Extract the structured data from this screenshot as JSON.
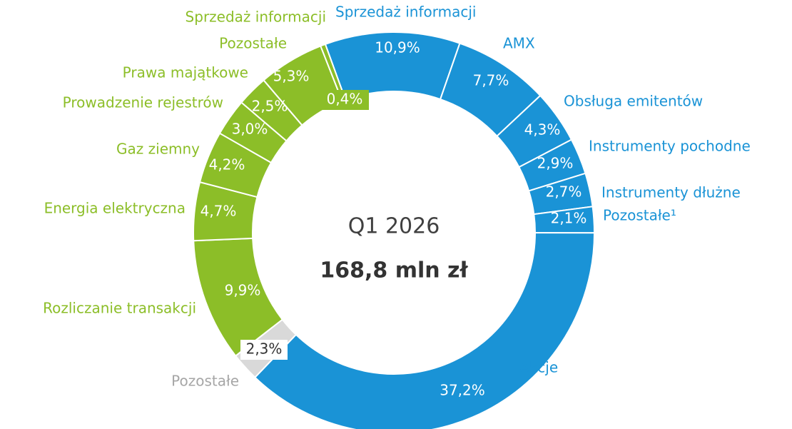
{
  "chart_data": {
    "type": "donut",
    "center_title": "Q1 2026",
    "center_value": "168,8 mln zł",
    "start_angle": -20,
    "categories": [
      "Sprzedaż informacji",
      "AMX",
      "Obsługa emitentów",
      "Instrumenty pochodne",
      "Instrumenty dłużne",
      "Pozostałe¹",
      "Akcje",
      "Pozostałe",
      "Rozliczanie transakcji",
      "Energia elektryczna",
      "Gaz ziemny",
      "Prowadzenie rejestrów",
      "Prawa majątkowe",
      "Pozostałe",
      "Sprzedaż informacji"
    ],
    "values": [
      10.9,
      7.7,
      4.3,
      2.9,
      2.7,
      2.1,
      37.2,
      2.3,
      9.9,
      4.7,
      4.2,
      3.0,
      2.5,
      5.3,
      0.4
    ],
    "value_labels": [
      "10,9%",
      "7,7%",
      "4,3%",
      "2,9%",
      "2,7%",
      "2,1%",
      "37,2%",
      "2,3%",
      "9,9%",
      "4,7%",
      "4,2%",
      "3,0%",
      "2,5%",
      "5,3%",
      "0,4%"
    ],
    "colors": [
      "#1a93d6",
      "#1a93d6",
      "#1a93d6",
      "#1a93d6",
      "#1a93d6",
      "#1a93d6",
      "#1a93d6",
      "#d9d9d9",
      "#8cbe28",
      "#8cbe28",
      "#8cbe28",
      "#8cbe28",
      "#8cbe28",
      "#8cbe28",
      "#8cbe28"
    ]
  }
}
